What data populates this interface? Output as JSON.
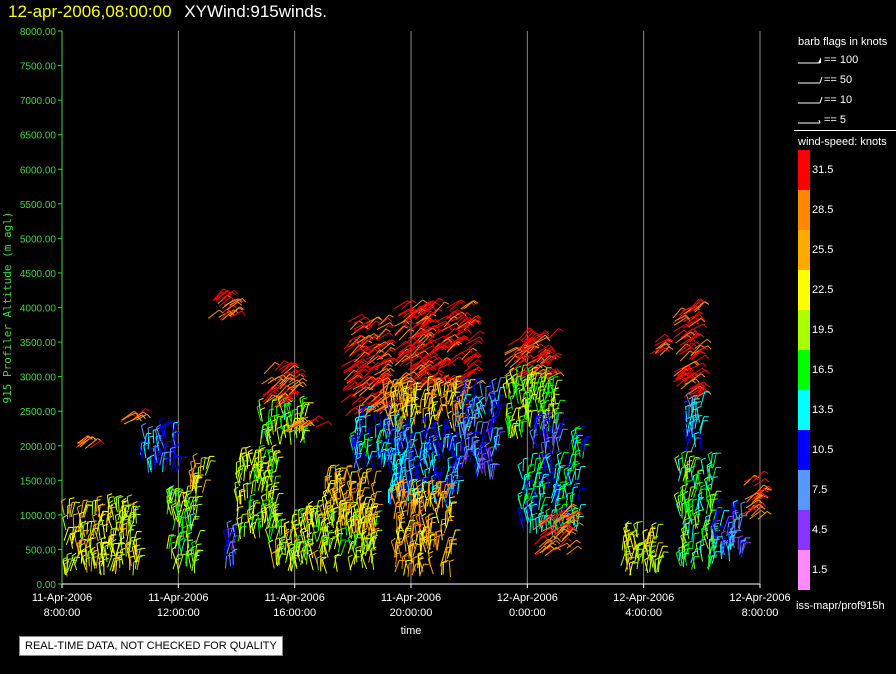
{
  "header": {
    "datetime": "12-apr-2006,08:00:00",
    "title": "XYWind:915winds."
  },
  "quality_note": "REAL-TIME DATA, NOT CHECKED FOR QUALITY",
  "legend": {
    "barb_title": "barb flags in knots",
    "barb_items": [
      "== 100",
      "== 50",
      "== 10",
      "== 5"
    ],
    "speed_title": "wind-speed: knots",
    "speed_levels": [
      {
        "label": "31.5",
        "color": "#ff0000"
      },
      {
        "label": "28.5",
        "color": "#ff8800"
      },
      {
        "label": "25.5",
        "color": "#ffaa00"
      },
      {
        "label": "22.5",
        "color": "#ffff00"
      },
      {
        "label": "19.5",
        "color": "#aaff00"
      },
      {
        "label": "16.5",
        "color": "#00ff00"
      },
      {
        "label": "13.5",
        "color": "#00ffff"
      },
      {
        "label": "10.5",
        "color": "#0000ff"
      },
      {
        "label": "7.5",
        "color": "#5599ff"
      },
      {
        "label": "4.5",
        "color": "#8833ff"
      },
      {
        "label": "1.5",
        "color": "#ff88ff"
      }
    ],
    "source": "iss-mapr/prof915h"
  },
  "chart_data": {
    "type": "scatter",
    "subtype": "wind barb time-height",
    "ylabel": "915 Profiler Altitude (m agl)",
    "xlabel": "time",
    "ylim": [
      0,
      8000
    ],
    "yticks": [
      "0.00",
      "500.00",
      "1000.00",
      "1500.00",
      "2000.00",
      "2500.00",
      "3000.00",
      "3500.00",
      "4000.00",
      "4500.00",
      "5000.00",
      "5500.00",
      "6000.00",
      "6500.00",
      "7000.00",
      "7500.00",
      "8000.00"
    ],
    "xlim_hours": [
      0,
      24
    ],
    "xticks": [
      {
        "line1": "11-Apr-2006",
        "line2": "8:00:00",
        "hour": 0
      },
      {
        "line1": "11-Apr-2006",
        "line2": "12:00:00",
        "hour": 4
      },
      {
        "line1": "11-Apr-2006",
        "line2": "16:00:00",
        "hour": 8
      },
      {
        "line1": "11-Apr-2006",
        "line2": "20:00:00",
        "hour": 12
      },
      {
        "line1": "12-Apr-2006",
        "line2": "0:00:00",
        "hour": 16
      },
      {
        "line1": "12-Apr-2006",
        "line2": "4:00:00",
        "hour": 20
      },
      {
        "line1": "12-Apr-2006",
        "line2": "8:00:00",
        "hour": 24
      }
    ],
    "grid": "vertical",
    "clusters": [
      {
        "t0": -0.8,
        "t1": 2.6,
        "h0": 100,
        "h1": 1100,
        "speed": 22
      },
      {
        "t0": 0.4,
        "t1": 1.0,
        "h0": 1950,
        "h1": 2050,
        "speed": 28
      },
      {
        "t0": 2.0,
        "t1": 2.6,
        "h0": 2300,
        "h1": 2400,
        "speed": 28
      },
      {
        "t0": 2.7,
        "t1": 4.0,
        "h0": 1600,
        "h1": 2150,
        "speed": 10
      },
      {
        "t0": 3.6,
        "t1": 4.6,
        "h0": 100,
        "h1": 1200,
        "speed": 18
      },
      {
        "t0": 4.4,
        "t1": 5.0,
        "h0": 1300,
        "h1": 1700,
        "speed": 24
      },
      {
        "t0": 5.0,
        "t1": 5.8,
        "h0": 3800,
        "h1": 4150,
        "speed": 31
      },
      {
        "t0": 5.6,
        "t1": 6.0,
        "h0": 200,
        "h1": 700,
        "speed": 9
      },
      {
        "t0": 6.0,
        "t1": 7.4,
        "h0": 600,
        "h1": 1800,
        "speed": 20
      },
      {
        "t0": 6.8,
        "t1": 7.9,
        "h0": 2550,
        "h1": 3100,
        "speed": 30
      },
      {
        "t0": 6.8,
        "t1": 8.4,
        "h0": 2000,
        "h1": 2500,
        "speed": 18
      },
      {
        "t0": 7.6,
        "t1": 8.8,
        "h0": 2200,
        "h1": 2300,
        "speed": 30
      },
      {
        "t0": 7.2,
        "t1": 10.8,
        "h0": 150,
        "h1": 1000,
        "speed": 21
      },
      {
        "t0": 9.0,
        "t1": 10.8,
        "h0": 700,
        "h1": 1500,
        "speed": 25
      },
      {
        "t0": 9.6,
        "t1": 11.0,
        "h0": 2400,
        "h1": 3800,
        "speed": 31
      },
      {
        "t0": 10.0,
        "t1": 11.6,
        "h0": 1600,
        "h1": 2400,
        "speed": 12
      },
      {
        "t0": 11.4,
        "t1": 14.0,
        "h0": 2800,
        "h1": 4000,
        "speed": 32
      },
      {
        "t0": 11.0,
        "t1": 14.0,
        "h0": 2200,
        "h1": 2800,
        "speed": 25
      },
      {
        "t0": 11.2,
        "t1": 13.6,
        "h0": 1100,
        "h1": 2200,
        "speed": 11
      },
      {
        "t0": 11.4,
        "t1": 13.4,
        "h0": 100,
        "h1": 1300,
        "speed": 25
      },
      {
        "t0": 13.6,
        "t1": 15.0,
        "h0": 1500,
        "h1": 2800,
        "speed": 9
      },
      {
        "t0": 15.2,
        "t1": 16.8,
        "h0": 2950,
        "h1": 3550,
        "speed": 31
      },
      {
        "t0": 15.2,
        "t1": 17.0,
        "h0": 2100,
        "h1": 2950,
        "speed": 19
      },
      {
        "t0": 16.2,
        "t1": 17.2,
        "h0": 1800,
        "h1": 2300,
        "speed": 8
      },
      {
        "t0": 15.8,
        "t1": 17.8,
        "h0": 700,
        "h1": 1700,
        "speed": 14
      },
      {
        "t0": 16.2,
        "t1": 17.4,
        "h0": 400,
        "h1": 1000,
        "speed": 30
      },
      {
        "t0": 17.4,
        "t1": 18.0,
        "h0": 1800,
        "h1": 2100,
        "speed": 14
      },
      {
        "t0": 19.2,
        "t1": 20.6,
        "h0": 100,
        "h1": 700,
        "speed": 22
      },
      {
        "t0": 20.2,
        "t1": 20.6,
        "h0": 3300,
        "h1": 3500,
        "speed": 31
      },
      {
        "t0": 21.0,
        "t1": 21.8,
        "h0": 2600,
        "h1": 4000,
        "speed": 31
      },
      {
        "t0": 21.4,
        "t1": 22.0,
        "h0": 1900,
        "h1": 2600,
        "speed": 11
      },
      {
        "t0": 21.2,
        "t1": 22.4,
        "h0": 200,
        "h1": 1700,
        "speed": 17
      },
      {
        "t0": 22.4,
        "t1": 23.4,
        "h0": 300,
        "h1": 1000,
        "speed": 9
      },
      {
        "t0": 23.4,
        "t1": 24.4,
        "h0": 900,
        "h1": 1500,
        "speed": 29
      }
    ]
  }
}
